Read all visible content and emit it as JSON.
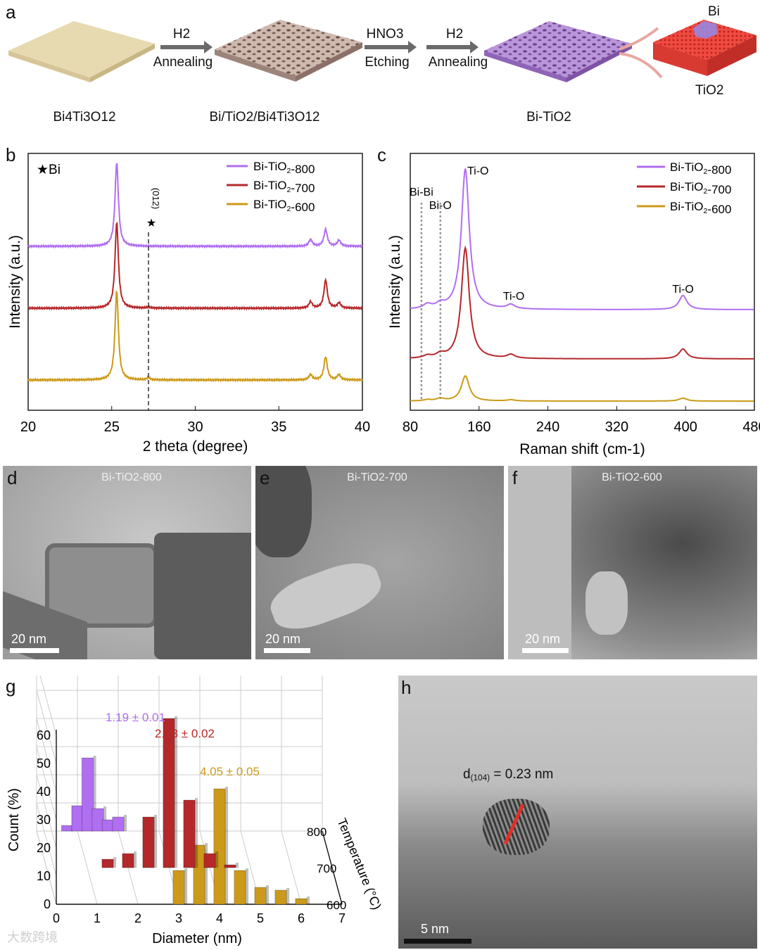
{
  "panels": {
    "a": "a",
    "b": "b",
    "c": "c",
    "d": "d",
    "e": "e",
    "f": "f",
    "g": "g",
    "h": "h"
  },
  "schematic": {
    "steps": [
      {
        "top": "H2",
        "bottom": "Annealing"
      },
      {
        "top": "HNO3",
        "bottom": "Etching"
      },
      {
        "top": "H2",
        "bottom": "Annealing"
      }
    ],
    "labels": [
      "Bi4Ti3O12",
      "Bi/TiO2/Bi4Ti3O12",
      "Bi-TiO2"
    ],
    "zoom_labels": {
      "bi": "Bi",
      "tio2": "TiO2"
    },
    "colors": {
      "start": "#e7d9b0",
      "porous1": "#c9b6ac",
      "porous2": "#b892d8",
      "lattice": "#e8433a"
    }
  },
  "chart_data": [
    {
      "panel": "b",
      "type": "line",
      "xlabel": "2 theta (degree)",
      "ylabel": "Intensity (a.u.)",
      "xlim": [
        20,
        40
      ],
      "xticks": [
        20,
        25,
        30,
        35,
        40
      ],
      "marker_legend": "★Bi",
      "peak_label": "(012)",
      "peak_x": 27.2,
      "series": [
        {
          "name": "Bi-TiO2-800",
          "color": "#b06ef0",
          "peaks": [
            [
              25.3,
              1.0
            ],
            [
              36.9,
              0.08
            ],
            [
              37.8,
              0.2
            ],
            [
              38.6,
              0.07
            ]
          ]
        },
        {
          "name": "Bi-TiO2-700",
          "color": "#b5282a",
          "peaks": [
            [
              25.3,
              0.82
            ],
            [
              36.9,
              0.06
            ],
            [
              37.8,
              0.27
            ],
            [
              38.6,
              0.05
            ],
            [
              27.2,
              0.01
            ]
          ]
        },
        {
          "name": "Bi-TiO2-600",
          "color": "#cc9a1a",
          "peaks": [
            [
              25.3,
              0.85
            ],
            [
              36.9,
              0.05
            ],
            [
              37.8,
              0.22
            ],
            [
              38.6,
              0.05
            ],
            [
              27.2,
              0.02
            ]
          ]
        }
      ]
    },
    {
      "panel": "c",
      "type": "line",
      "xlabel": "Raman shift (cm-1)",
      "ylabel": "Intensity (a.u.)",
      "xlim": [
        80,
        480
      ],
      "xticks": [
        80,
        160,
        240,
        320,
        400,
        480
      ],
      "annotations": [
        "Bi-Bi",
        "Bi-O",
        "Ti-O",
        "Ti-O",
        "Ti-O"
      ],
      "ref_lines": [
        93,
        115
      ],
      "series": [
        {
          "name": "Bi-TiO2-800",
          "color": "#b06ef0",
          "peaks": [
            [
              144,
              1.0
            ],
            [
              197,
              0.03
            ],
            [
              397,
              0.1
            ],
            [
              100,
              0.03
            ],
            [
              115,
              0.03
            ]
          ]
        },
        {
          "name": "Bi-TiO2-700",
          "color": "#b5282a",
          "peaks": [
            [
              144,
              0.9
            ],
            [
              197,
              0.03
            ],
            [
              397,
              0.08
            ],
            [
              100,
              0.02
            ],
            [
              115,
              0.03
            ]
          ]
        },
        {
          "name": "Bi-TiO2-600",
          "color": "#cc9a1a",
          "peaks": [
            [
              144,
              0.42
            ],
            [
              197,
              0.02
            ],
            [
              397,
              0.05
            ],
            [
              100,
              0.02
            ],
            [
              115,
              0.04
            ]
          ]
        }
      ]
    },
    {
      "panel": "g",
      "type": "bar",
      "xlabel": "Diameter (nm)",
      "ylabel": "Count (%)",
      "zlabel": "Temperature (°C)",
      "xticks": [
        0,
        1,
        2,
        3,
        4,
        5,
        6,
        7
      ],
      "yticks": [
        0,
        10,
        20,
        30,
        40,
        50,
        60
      ],
      "zticks": [
        600,
        700,
        800
      ],
      "series": [
        {
          "temperature": 800,
          "mean_label": "1.19 ± 0.01",
          "color": "#b06ef0",
          "bars": [
            [
              0.75,
              2
            ],
            [
              1.0,
              9
            ],
            [
              1.25,
              26
            ],
            [
              1.5,
              8
            ],
            [
              1.75,
              4
            ],
            [
              2.0,
              5
            ]
          ]
        },
        {
          "temperature": 700,
          "mean_label": "2.83 ± 0.02",
          "color": "#b5282a",
          "bars": [
            [
              1.5,
              3
            ],
            [
              2.0,
              5
            ],
            [
              2.5,
              18
            ],
            [
              3.0,
              53
            ],
            [
              3.5,
              24
            ],
            [
              4.0,
              5
            ],
            [
              4.5,
              1
            ]
          ]
        },
        {
          "temperature": 600,
          "mean_label": "4.05 ± 0.05",
          "color": "#cc9a1a",
          "bars": [
            [
              3.0,
              12
            ],
            [
              3.5,
              21
            ],
            [
              4.0,
              41
            ],
            [
              4.5,
              12
            ],
            [
              5.0,
              6
            ],
            [
              5.5,
              5
            ],
            [
              6.0,
              2
            ]
          ]
        }
      ]
    }
  ],
  "tem": {
    "d": {
      "title": "Bi-TiO2-800",
      "scale": "20 nm"
    },
    "e": {
      "title": "Bi-TiO2-700",
      "scale": "20 nm"
    },
    "f": {
      "title": "Bi-TiO2-600",
      "scale": "20 nm"
    },
    "h": {
      "d_spacing": "= 0.23 nm",
      "scale": "5 nm"
    }
  },
  "watermark": "大数跨境"
}
